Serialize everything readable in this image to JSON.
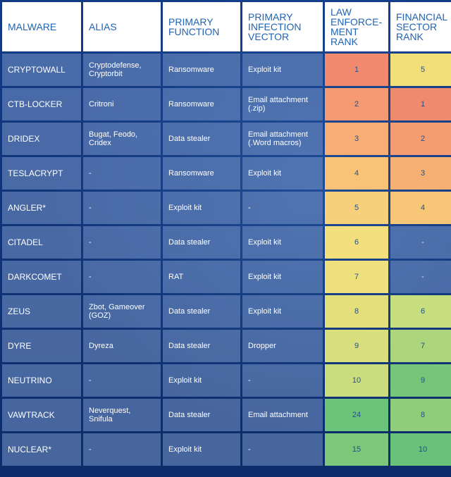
{
  "header": {
    "malware": "MALWARE",
    "alias": "ALIAS",
    "primary_function": "PRIMARY FUNCTION",
    "infection_vector": "PRIMARY INFECTION VECTOR",
    "law_rank": "LAW ENFORCE-MENT RANK",
    "fin_rank": "FINANCIAL SECTOR RANK"
  },
  "rows": [
    {
      "malware": "CRYPTOWALL",
      "alias": "Cryptodefense, Cryptorbit",
      "function": "Ransomware",
      "vector": "Exploit kit",
      "law": "1",
      "law_color": "#f28a6e",
      "fin": "5",
      "fin_color": "#f3df79"
    },
    {
      "malware": "CTB-LOCKER",
      "alias": "Critroni",
      "function": "Ransomware",
      "vector": "Email attachment (.zip)",
      "law": "2",
      "law_color": "#f59a72",
      "fin": "1",
      "fin_color": "#f08a6c"
    },
    {
      "malware": "DRIDEX",
      "alias": "Bugat, Feodo, Cridex",
      "function": "Data stealer",
      "vector": "Email attachment (.Word macros)",
      "law": "3",
      "law_color": "#f7ad73",
      "fin": "2",
      "fin_color": "#f49c72"
    },
    {
      "malware": "TESLACRYPT",
      "alias": "-",
      "function": "Ransomware",
      "vector": "Exploit kit",
      "law": "4",
      "law_color": "#f9c277",
      "fin": "3",
      "fin_color": "#f7b074"
    },
    {
      "malware": "ANGLER*",
      "alias": "-",
      "function": "Exploit kit",
      "vector": "-",
      "law": "5",
      "law_color": "#f7d07b",
      "fin": "4",
      "fin_color": "#f7c676"
    },
    {
      "malware": "CITADEL",
      "alias": "-",
      "function": "Data stealer",
      "vector": "Exploit kit",
      "law": "6",
      "law_color": "#f4df7d",
      "fin": "-",
      "fin_color": ""
    },
    {
      "malware": "DARKCOMET",
      "alias": "-",
      "function": "RAT",
      "vector": "Exploit kit",
      "law": "7",
      "law_color": "#eee07c",
      "fin": "-",
      "fin_color": ""
    },
    {
      "malware": "ZEUS",
      "alias": "Zbot, Gameover (GOZ)",
      "function": "Data stealer",
      "vector": "Exploit kit",
      "law": "8",
      "law_color": "#e3e07c",
      "fin": "6",
      "fin_color": "#c7de7e"
    },
    {
      "malware": "DYRE",
      "alias": "Dyreza",
      "function": "Data stealer",
      "vector": "Dropper",
      "law": "9",
      "law_color": "#d9df7d",
      "fin": "7",
      "fin_color": "#acd57c"
    },
    {
      "malware": "NEUTRINO",
      "alias": "-",
      "function": "Exploit kit",
      "vector": "-",
      "law": "10",
      "law_color": "#cbdc7e",
      "fin": "9",
      "fin_color": "#75c678"
    },
    {
      "malware": "VAWTRACK",
      "alias": "Neverquest, Snifula",
      "function": "Data stealer",
      "vector": "Email attachment",
      "law": "24",
      "law_color": "#6cc37a",
      "fin": "8",
      "fin_color": "#8fcd7a"
    },
    {
      "malware": "NUCLEAR*",
      "alias": "-",
      "function": "Exploit kit",
      "vector": "-",
      "law": "15",
      "law_color": "#7cc77a",
      "fin": "10",
      "fin_color": "#69c27a"
    }
  ]
}
